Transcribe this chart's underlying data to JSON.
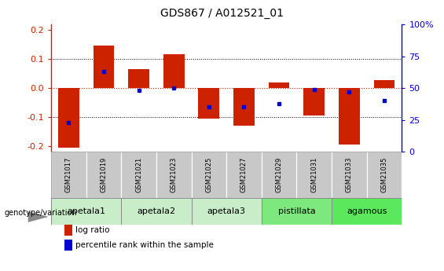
{
  "title": "GDS867 / A012521_01",
  "samples": [
    "GSM21017",
    "GSM21019",
    "GSM21021",
    "GSM21023",
    "GSM21025",
    "GSM21027",
    "GSM21029",
    "GSM21031",
    "GSM21033",
    "GSM21035"
  ],
  "log_ratios": [
    -0.205,
    0.148,
    0.065,
    0.118,
    -0.105,
    -0.13,
    0.018,
    -0.095,
    -0.195,
    0.028
  ],
  "percentile_ranks": [
    23,
    63,
    48,
    50,
    35,
    35,
    38,
    49,
    47,
    40
  ],
  "groups": [
    {
      "name": "apetala1",
      "samples": [
        0,
        1
      ],
      "color": "#c8edc8"
    },
    {
      "name": "apetala2",
      "samples": [
        2,
        3
      ],
      "color": "#c8edc8"
    },
    {
      "name": "apetala3",
      "samples": [
        4,
        5
      ],
      "color": "#c8edc8"
    },
    {
      "name": "pistillata",
      "samples": [
        6,
        7
      ],
      "color": "#7de87d"
    },
    {
      "name": "agamous",
      "samples": [
        8,
        9
      ],
      "color": "#5ce85c"
    }
  ],
  "ylim": [
    -0.22,
    0.22
  ],
  "yticks": [
    -0.2,
    -0.1,
    0.0,
    0.1,
    0.2
  ],
  "right_yticks": [
    0,
    25,
    50,
    75,
    100
  ],
  "bar_color": "#cc2200",
  "dot_color": "#0000cc",
  "background_color": "#ffffff",
  "grid_color": "#000000",
  "zero_line_color": "#cc2200",
  "sample_box_color": "#c8c8c8",
  "legend_items": [
    "log ratio",
    "percentile rank within the sample"
  ]
}
